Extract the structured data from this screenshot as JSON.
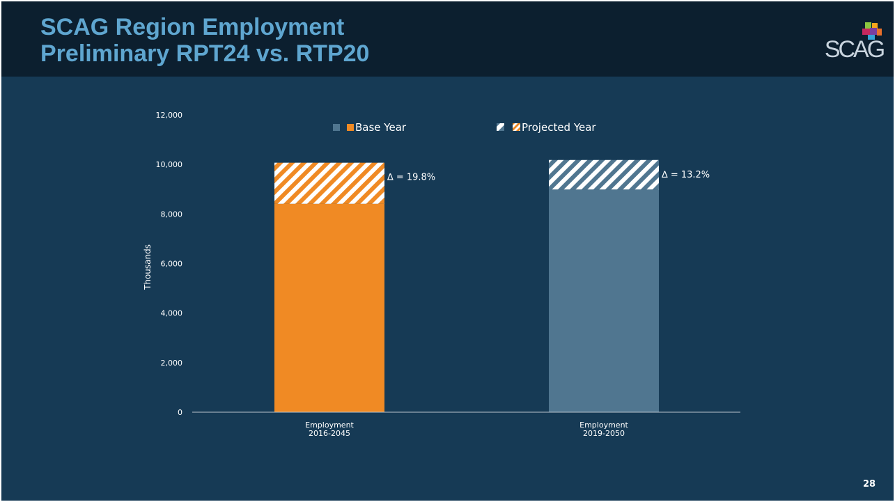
{
  "header": {
    "title_line1": "SCAG Region Employment",
    "title_line2": "Preliminary RPT24 vs. RTP20",
    "logo_text": "SCAG"
  },
  "slide_number": "28",
  "colors": {
    "background": "#163a55",
    "header_bg": "#0c1f2f",
    "title": "#5fa6d0",
    "orange": "#f08a24",
    "slate": "#507690"
  },
  "chart_data": {
    "type": "bar",
    "stacked": true,
    "categories": [
      "Employment\n2016-2045",
      "Employment\n2019-2050"
    ],
    "series": [
      {
        "name": "Base Year",
        "values": [
          8410,
          8990
        ]
      },
      {
        "name": "Projected Year",
        "values": [
          1660,
          1190
        ]
      }
    ],
    "annotations": [
      "∆ = 19.8%",
      "∆ = 13.2%"
    ],
    "ylabel": "Thousands",
    "ylim": [
      0,
      12000
    ],
    "yticks": [
      0,
      2000,
      4000,
      6000,
      8000,
      10000,
      12000
    ],
    "ytick_labels": [
      "0",
      "2,000",
      "4,000",
      "6,000",
      "8,000",
      "10,000",
      "12,000"
    ],
    "legend_position": "top",
    "grid": false
  }
}
